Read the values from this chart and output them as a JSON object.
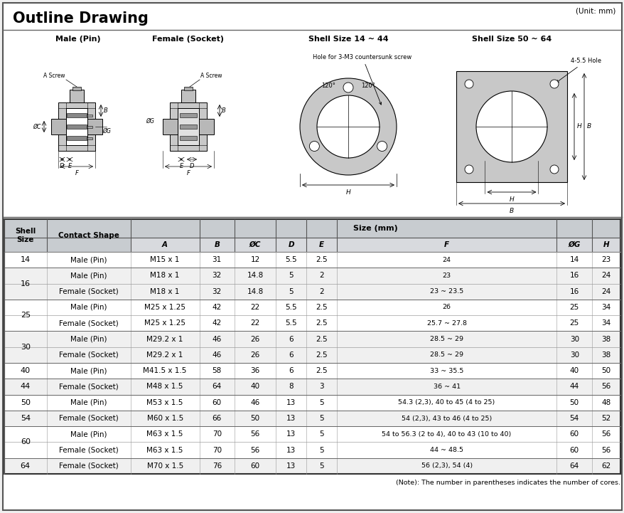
{
  "title": "Outline Drawing",
  "unit_label": "(Unit: mm)",
  "bg_color": "#f0f0f0",
  "table_bg": "#ffffff",
  "header_bg": "#c8ccd0",
  "subheader_bg": "#d8dade",
  "size_mm_header": "Size (mm)",
  "rows": [
    [
      "14",
      "Male (Pin)",
      "M15 x 1",
      "31",
      "12",
      "5.5",
      "2.5",
      "24",
      "14",
      "23"
    ],
    [
      "16",
      "Male (Pin)",
      "M18 x 1",
      "32",
      "14.8",
      "5",
      "2",
      "23",
      "16",
      "24"
    ],
    [
      "16",
      "Female (Socket)",
      "M18 x 1",
      "32",
      "14.8",
      "5",
      "2",
      "23 ~ 23.5",
      "16",
      "24"
    ],
    [
      "25",
      "Male (Pin)",
      "M25 x 1.25",
      "42",
      "22",
      "5.5",
      "2.5",
      "26",
      "25",
      "34"
    ],
    [
      "25",
      "Female (Socket)",
      "M25 x 1.25",
      "42",
      "22",
      "5.5",
      "2.5",
      "25.7 ~ 27.8",
      "25",
      "34"
    ],
    [
      "30",
      "Male (Pin)",
      "M29.2 x 1",
      "46",
      "26",
      "6",
      "2.5",
      "28.5 ~ 29",
      "30",
      "38"
    ],
    [
      "30",
      "Female (Socket)",
      "M29.2 x 1",
      "46",
      "26",
      "6",
      "2.5",
      "28.5 ~ 29",
      "30",
      "38"
    ],
    [
      "40",
      "Male (Pin)",
      "M41.5 x 1.5",
      "58",
      "36",
      "6",
      "2.5",
      "33 ~ 35.5",
      "40",
      "50"
    ],
    [
      "44",
      "Female (Socket)",
      "M48 x 1.5",
      "64",
      "40",
      "8",
      "3",
      "36 ~ 41",
      "44",
      "56"
    ],
    [
      "50",
      "Male (Pin)",
      "M53 x 1.5",
      "60",
      "46",
      "13",
      "5",
      "54.3 (2,3), 40 to 45 (4 to 25)",
      "50",
      "48"
    ],
    [
      "54",
      "Female (Socket)",
      "M60 x 1.5",
      "66",
      "50",
      "13",
      "5",
      "54 (2,3), 43 to 46 (4 to 25)",
      "54",
      "52"
    ],
    [
      "60",
      "Male (Pin)",
      "M63 x 1.5",
      "70",
      "56",
      "13",
      "5",
      "54 to 56.3 (2 to 4), 40 to 43 (10 to 40)",
      "60",
      "56"
    ],
    [
      "60",
      "Female (Socket)",
      "M63 x 1.5",
      "70",
      "56",
      "13",
      "5",
      "44 ~ 48.5",
      "60",
      "56"
    ],
    [
      "64",
      "Female (Socket)",
      "M70 x 1.5",
      "76",
      "60",
      "13",
      "5",
      "56 (2,3), 54 (4)",
      "64",
      "62"
    ]
  ],
  "shell_groups": [
    [
      0,
      0,
      "14"
    ],
    [
      1,
      2,
      "16"
    ],
    [
      3,
      4,
      "25"
    ],
    [
      5,
      6,
      "30"
    ],
    [
      7,
      7,
      "40"
    ],
    [
      8,
      8,
      "44"
    ],
    [
      9,
      9,
      "50"
    ],
    [
      10,
      10,
      "54"
    ],
    [
      11,
      12,
      "60"
    ],
    [
      13,
      13,
      "64"
    ]
  ],
  "note": "(Note): The number in parentheses indicates the number of cores.",
  "drawing_titles": [
    "Male (Pin)",
    "Female (Socket)",
    "Shell Size 14 ~ 44",
    "Shell Size 50 ~ 64"
  ]
}
